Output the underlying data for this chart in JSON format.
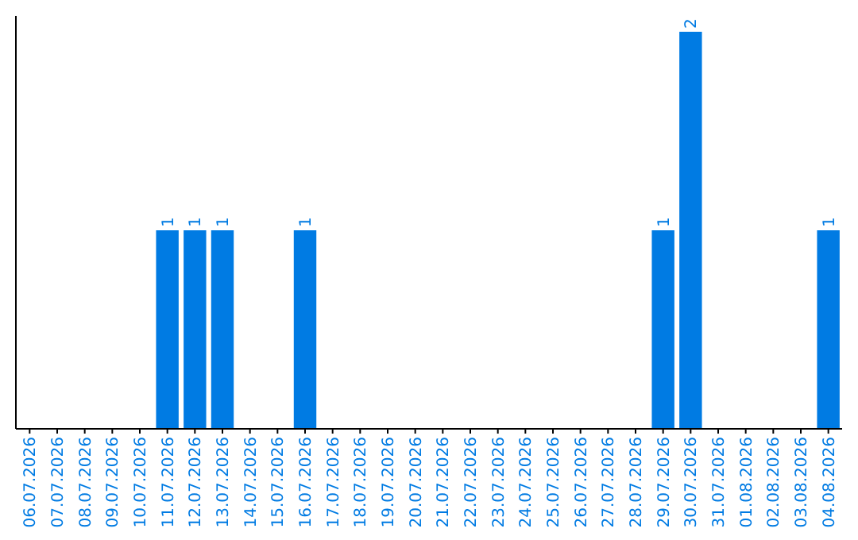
{
  "chart_data": {
    "type": "bar",
    "categories": [
      "06.07.2026",
      "07.07.2026",
      "08.07.2026",
      "09.07.2026",
      "10.07.2026",
      "11.07.2026",
      "12.07.2026",
      "13.07.2026",
      "14.07.2026",
      "15.07.2026",
      "16.07.2026",
      "17.07.2026",
      "18.07.2026",
      "19.07.2026",
      "20.07.2026",
      "21.07.2026",
      "22.07.2026",
      "23.07.2026",
      "24.07.2026",
      "25.07.2026",
      "26.07.2026",
      "27.07.2026",
      "28.07.2026",
      "29.07.2026",
      "30.07.2026",
      "31.07.2026",
      "01.08.2026",
      "02.08.2026",
      "03.08.2026",
      "04.08.2026"
    ],
    "values": [
      0,
      0,
      0,
      0,
      0,
      1,
      1,
      1,
      0,
      0,
      1,
      0,
      0,
      0,
      0,
      0,
      0,
      0,
      0,
      0,
      0,
      0,
      0,
      1,
      2,
      0,
      0,
      0,
      0,
      1
    ],
    "value_labels": [
      null,
      null,
      null,
      null,
      null,
      "1",
      "1",
      "1",
      null,
      null,
      "1",
      null,
      null,
      null,
      null,
      null,
      null,
      null,
      null,
      null,
      null,
      null,
      null,
      "1",
      "2",
      null,
      null,
      null,
      null,
      "1"
    ],
    "color": "#007be3",
    "ylim": [
      0,
      2.08
    ],
    "tick_labels": "x"
  }
}
